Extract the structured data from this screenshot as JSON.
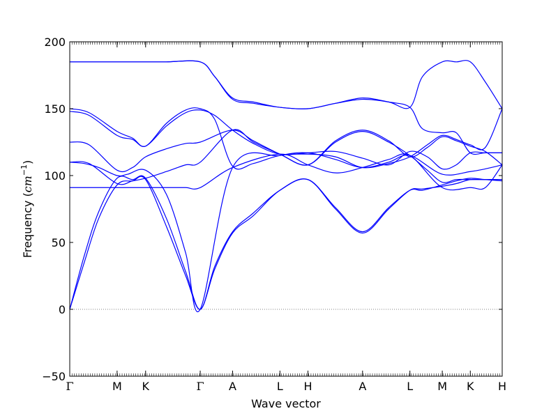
{
  "chart_data": {
    "type": "line",
    "title": "",
    "xlabel": "Wave vector",
    "ylabel": "Frequency",
    "ylabel_unit": "cm",
    "ylabel_unit_exp": "−1",
    "ylim": [
      -50,
      200
    ],
    "yticks": [
      -50,
      0,
      50,
      100,
      150,
      200
    ],
    "ytick_labels": [
      "−50",
      "0",
      "50",
      "100",
      "150",
      "200"
    ],
    "x_range": [
      0,
      8.95
    ],
    "kpoints": [
      {
        "label": "Γ",
        "x": 0.0
      },
      {
        "label": "M",
        "x": 0.98
      },
      {
        "label": "K",
        "x": 1.57
      },
      {
        "label": "Γ",
        "x": 2.7
      },
      {
        "label": "A",
        "x": 3.37
      },
      {
        "label": "L",
        "x": 4.35
      },
      {
        "label": "H",
        "x": 4.93
      },
      {
        "label": "A",
        "x": 6.06
      },
      {
        "label": "L",
        "x": 7.04
      },
      {
        "label": "M",
        "x": 7.71
      },
      {
        "label": "K",
        "x": 8.29
      },
      {
        "label": "H",
        "x": 8.95
      }
    ],
    "series_color": "#0000ff",
    "zero_line": {
      "y": 0,
      "style": "dotted",
      "color": "#808080"
    },
    "series": [
      {
        "x": [
          0,
          0.3,
          0.6,
          0.98,
          1.3,
          1.57,
          2.0,
          2.4,
          2.7,
          3.0,
          3.37,
          3.8,
          4.35,
          4.93,
          5.5,
          6.06,
          6.6,
          7.04,
          7.3,
          7.71,
          8.0,
          8.29,
          8.6,
          8.95
        ],
        "y": [
          0,
          35,
          68,
          93,
          96,
          97,
          62,
          25,
          0,
          30,
          57,
          70,
          89,
          97,
          75,
          57,
          75,
          89,
          90,
          92,
          94,
          97,
          97,
          97
        ]
      },
      {
        "x": [
          0,
          0.3,
          0.6,
          0.98,
          1.3,
          1.57,
          2.0,
          2.4,
          2.7,
          3.0,
          3.37,
          3.8,
          4.35,
          4.93,
          5.5,
          6.06,
          6.6,
          7.04,
          7.3,
          7.71,
          8.0,
          8.29,
          8.6,
          8.95
        ],
        "y": [
          0,
          40,
          73,
          98,
          97,
          98,
          68,
          28,
          0,
          32,
          58,
          72,
          89,
          97,
          76,
          58,
          76,
          89,
          89,
          93,
          96,
          98,
          97,
          96
        ]
      },
      {
        "x": [
          0,
          0.3,
          0.6,
          0.98,
          1.2,
          1.57,
          2.0,
          2.4,
          2.7,
          3.37,
          4.35,
          4.93,
          5.5,
          6.06,
          6.6,
          7.04,
          7.71,
          8.29,
          8.6,
          8.95
        ],
        "y": [
          91,
          91,
          91,
          91,
          91,
          91,
          91,
          91,
          91,
          106,
          116,
          108,
          102,
          106,
          112,
          115,
          91,
          91,
          91,
          108
        ]
      },
      {
        "x": [
          0,
          0.3,
          0.6,
          0.98,
          1.2,
          1.57,
          2.0,
          2.4,
          2.7,
          3.37,
          4.35,
          4.93,
          5.5,
          6.06,
          6.6,
          7.04,
          7.71,
          8.29,
          8.6,
          8.95
        ],
        "y": [
          110,
          109,
          106,
          100,
          101,
          104,
          86,
          42,
          0,
          106,
          115,
          117,
          112,
          106,
          110,
          115,
          101,
          103,
          105,
          108
        ]
      },
      {
        "x": [
          0,
          0.4,
          0.98,
          1.3,
          1.57,
          2.0,
          2.4,
          2.7,
          3.37,
          3.8,
          4.35,
          4.93,
          5.5,
          6.06,
          6.6,
          7.04,
          7.4,
          7.71,
          8.0,
          8.29,
          8.6,
          8.95
        ],
        "y": [
          110,
          109,
          94,
          96,
          98,
          103,
          108,
          110,
          134,
          125,
          116,
          108,
          125,
          133,
          125,
          115,
          104,
          95,
          97,
          97,
          97,
          97
        ]
      },
      {
        "x": [
          0,
          0.4,
          0.98,
          1.3,
          1.57,
          2.0,
          2.4,
          2.7,
          3.37,
          3.8,
          4.35,
          4.93,
          5.5,
          6.06,
          6.6,
          7.04,
          7.4,
          7.71,
          8.0,
          8.29,
          8.6,
          8.95
        ],
        "y": [
          125,
          123,
          104,
          106,
          114,
          120,
          124,
          125,
          134,
          126,
          116,
          108,
          126,
          134,
          126,
          114,
          121,
          129,
          126,
          122,
          118,
          108
        ]
      },
      {
        "x": [
          0,
          0.4,
          0.98,
          1.3,
          1.57,
          2.0,
          2.4,
          2.7,
          3.0,
          3.37,
          3.8,
          4.35,
          4.93,
          5.5,
          6.06,
          6.6,
          7.04,
          7.4,
          7.71,
          8.0,
          8.29,
          8.6,
          8.95
        ],
        "y": [
          148,
          145,
          130,
          127,
          122,
          137,
          147,
          149,
          145,
          134,
          124,
          116,
          117,
          118,
          113,
          108,
          118,
          114,
          105,
          108,
          117,
          117,
          117
        ]
      },
      {
        "x": [
          0,
          0.4,
          0.98,
          1.3,
          1.57,
          2.0,
          2.4,
          2.7,
          3.0,
          3.37,
          3.8,
          4.35,
          4.93,
          5.5,
          6.06,
          6.6,
          7.04,
          7.4,
          7.71,
          8.0,
          8.29,
          8.6,
          8.95
        ],
        "y": [
          150,
          147,
          133,
          128,
          122,
          139,
          149,
          150,
          142,
          107,
          109,
          115,
          116,
          114,
          106,
          109,
          114,
          123,
          130,
          127,
          123,
          121,
          150
        ]
      },
      {
        "x": [
          0,
          0.98,
          1.57,
          2.0,
          2.7,
          3.0,
          3.37,
          3.8,
          4.35,
          4.93,
          5.5,
          6.06,
          6.6,
          7.04,
          7.3,
          7.71,
          8.0,
          8.29,
          8.6,
          8.95
        ],
        "y": [
          185,
          185,
          185,
          185,
          185,
          174,
          158,
          155,
          151,
          150,
          154,
          158,
          155,
          151,
          135,
          132,
          132,
          117,
          117,
          117
        ]
      },
      {
        "x": [
          0,
          0.98,
          1.57,
          2.0,
          2.7,
          3.0,
          3.37,
          3.8,
          4.35,
          4.93,
          5.5,
          6.06,
          6.6,
          7.04,
          7.3,
          7.71,
          8.0,
          8.29,
          8.6,
          8.95
        ],
        "y": [
          185,
          185,
          185,
          185,
          185,
          174,
          157,
          154,
          151,
          150,
          154,
          157,
          155,
          151,
          174,
          185,
          185,
          185,
          170,
          150
        ]
      }
    ]
  }
}
